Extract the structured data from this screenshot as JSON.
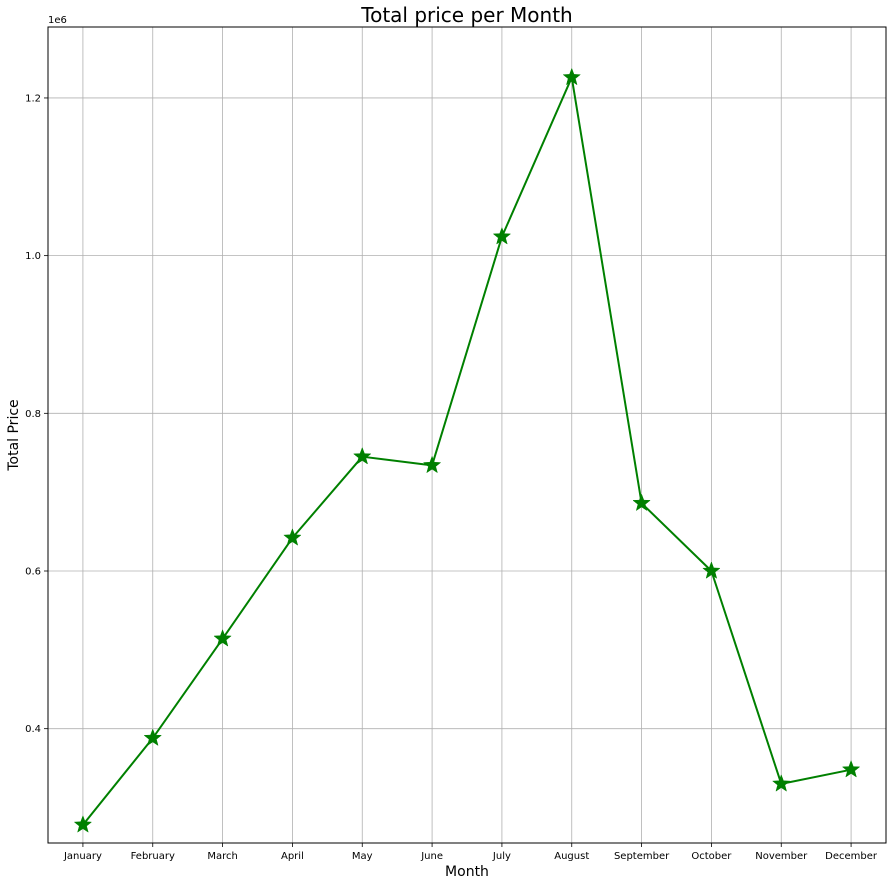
{
  "chart_data": {
    "type": "line",
    "title": "Total price per Month",
    "xlabel": "Month",
    "ylabel": "Total Price",
    "y_offset_label": "1e6",
    "categories": [
      "January",
      "February",
      "March",
      "April",
      "May",
      "June",
      "July",
      "August",
      "September",
      "October",
      "November",
      "December"
    ],
    "series": [
      {
        "values": [
          278000,
          388000,
          514000,
          642000,
          745000,
          734000,
          1024000,
          1226000,
          686000,
          600000,
          330000,
          348000
        ],
        "color": "#008000",
        "marker": "star"
      }
    ],
    "yticks": [
      0.4,
      0.6,
      0.8,
      1.0,
      1.2
    ],
    "ytick_labels": [
      "0.4",
      "0.6",
      "0.8",
      "1.0",
      "1.2"
    ],
    "ylim": [
      255000,
      1290000
    ],
    "y_scale_factor": 1000000,
    "grid": true,
    "legend": "none"
  }
}
